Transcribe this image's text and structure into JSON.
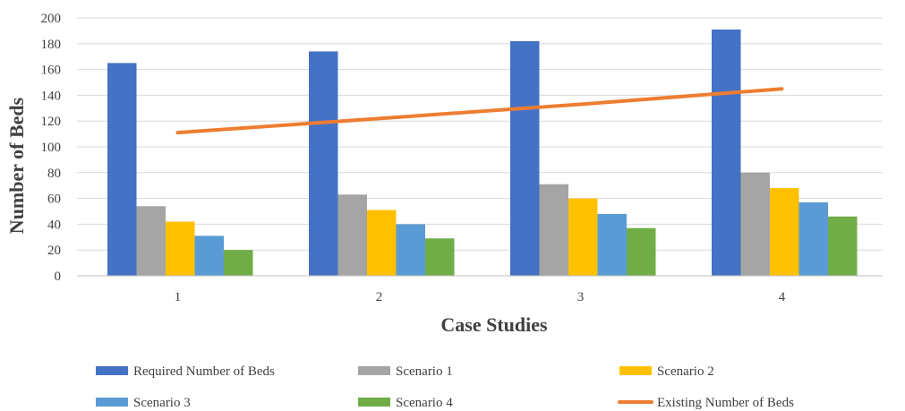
{
  "chart_data": {
    "type": "bar",
    "title": "",
    "xlabel": "Case Studies",
    "ylabel": "Number of Beds",
    "categories": [
      "1",
      "2",
      "3",
      "4"
    ],
    "ylim": [
      0,
      200
    ],
    "yticks": [
      "0",
      "20",
      "40",
      "60",
      "80",
      "100",
      "120",
      "140",
      "160",
      "180",
      "200"
    ],
    "grid": true,
    "legend_position": "bottom",
    "series": [
      {
        "name": "Required Number of Beds",
        "type": "bar",
        "color": "#4472C4",
        "values": [
          165,
          174,
          182,
          191
        ]
      },
      {
        "name": "Scenario 1",
        "type": "bar",
        "color": "#A5A5A5",
        "values": [
          54,
          63,
          71,
          80
        ]
      },
      {
        "name": "Scenario 2",
        "type": "bar",
        "color": "#FFC000",
        "values": [
          42,
          51,
          60,
          68
        ]
      },
      {
        "name": "Scenario 3",
        "type": "bar",
        "color": "#5B9BD5",
        "values": [
          31,
          40,
          48,
          57
        ]
      },
      {
        "name": "Scenario 4",
        "type": "bar",
        "color": "#70AD47",
        "values": [
          20,
          29,
          37,
          46
        ]
      },
      {
        "name": "Existing Number of Beds",
        "type": "line",
        "color": "#ED7D31",
        "values": [
          111,
          122,
          133,
          145
        ]
      }
    ]
  }
}
